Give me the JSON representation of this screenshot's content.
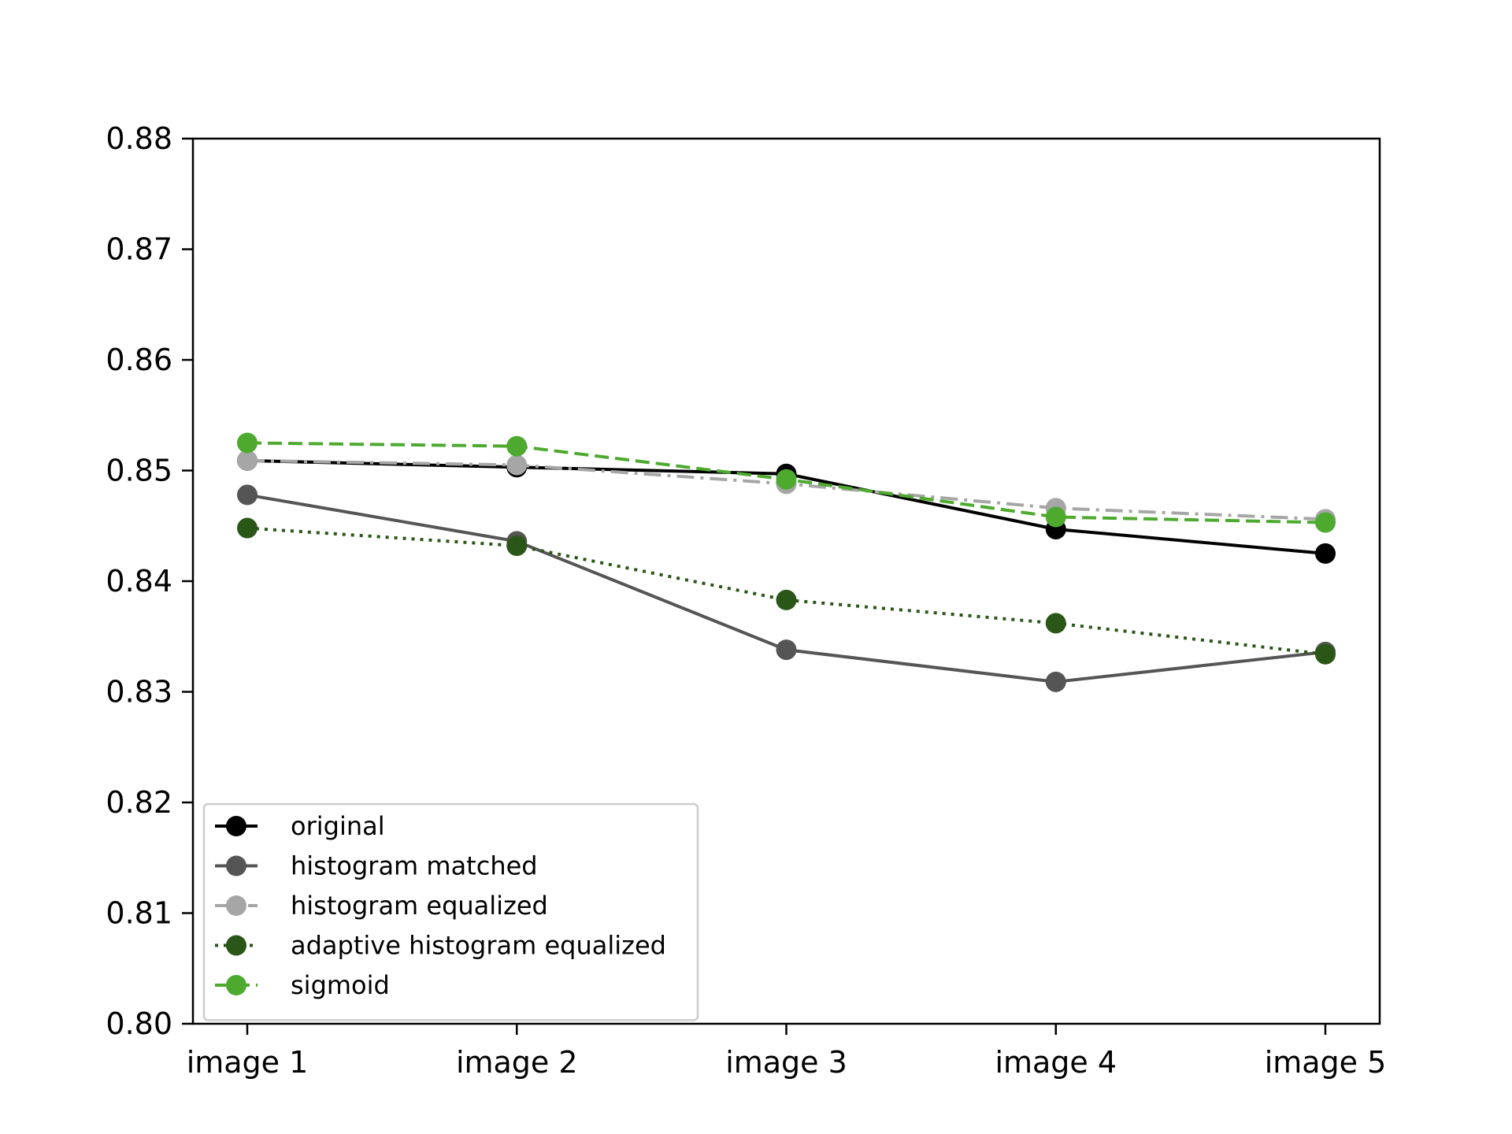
{
  "chart_data": {
    "type": "line",
    "title": "",
    "xlabel": "",
    "ylabel": "",
    "categories": [
      "image 1",
      "image 2",
      "image 3",
      "image 4",
      "image 5"
    ],
    "ylim": [
      0.8,
      0.88
    ],
    "yticks": [
      "0.80",
      "0.81",
      "0.82",
      "0.83",
      "0.84",
      "0.85",
      "0.86",
      "0.87",
      "0.88"
    ],
    "grid": false,
    "legend_position": "lower-left",
    "series": [
      {
        "name": "original",
        "values": [
          0.8509,
          0.8503,
          0.8497,
          0.8447,
          0.8425
        ],
        "color": "#000000",
        "dash": "solid"
      },
      {
        "name": "histogram matched",
        "values": [
          0.8478,
          0.8436,
          0.8338,
          0.8309,
          0.8336
        ],
        "color": "#555555",
        "dash": "solid"
      },
      {
        "name": "histogram equalized",
        "values": [
          0.8509,
          0.8505,
          0.8488,
          0.8466,
          0.8456
        ],
        "color": "#a6a6a6",
        "dash": "dashdot"
      },
      {
        "name": "adaptive histogram equalized",
        "values": [
          0.8448,
          0.8432,
          0.8383,
          0.8362,
          0.8334
        ],
        "color": "#2a5618",
        "dash": "dotted"
      },
      {
        "name": "sigmoid",
        "values": [
          0.8525,
          0.8522,
          0.8492,
          0.8458,
          0.8453
        ],
        "color": "#4daa2f",
        "dash": "dashed"
      }
    ]
  }
}
